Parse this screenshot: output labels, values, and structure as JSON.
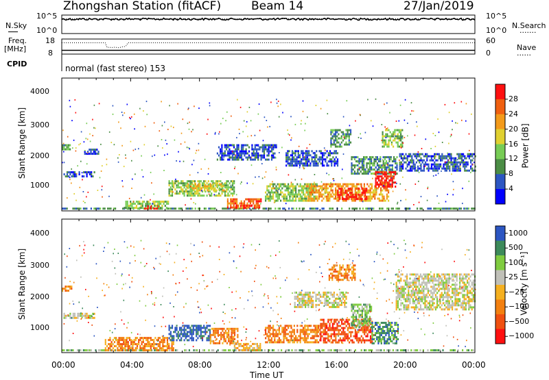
{
  "header": {
    "station": "Zhongshan Station (fitACF)",
    "beam": "Beam 14",
    "date": "27/Jan/2019"
  },
  "side_labels": {
    "nsky": "N.Sky",
    "freq_line1": "Freq.",
    "freq_line2": "[MHz]",
    "cpid": "CPID",
    "nsearch": "N.Search",
    "nave": "Nave",
    "dotted_sample": "......."
  },
  "cpid_text": "normal (fast stereo) 153",
  "chart_data": [
    {
      "type": "line",
      "panel": "noise",
      "left_ticks": [
        "10^5",
        "10^0"
      ],
      "right_ticks": [
        "10^5",
        "10^0"
      ],
      "series": [
        {
          "name": "N.Sky",
          "style": "solid",
          "level": 0.78
        },
        {
          "name": "N.Search",
          "style": "dotted",
          "level": 0.8
        }
      ]
    },
    {
      "type": "line",
      "panel": "frequency",
      "left_ticks": [
        "18",
        "8"
      ],
      "right_ticks": [
        "60",
        "0"
      ],
      "series": [
        {
          "name": "Freq.",
          "style": "solid",
          "value_mhz": 10.5
        },
        {
          "name": "Nave",
          "style": "dotted",
          "value": 45
        }
      ]
    },
    {
      "type": "heatmap",
      "panel": "power",
      "ylabel": "Slant Range [km]",
      "yticks": [
        "4000",
        "3000",
        "2000",
        "1000"
      ],
      "ylim": [
        180,
        4600
      ],
      "xlim": [
        0,
        24
      ],
      "colorbar_label": "Power [dB]",
      "colorbar_ticks": [
        "28",
        "24",
        "20",
        "16",
        "12",
        "8",
        "4"
      ],
      "colors": [
        "#0000ff",
        "#2c56c2",
        "#4b8d45",
        "#77cc55",
        "#e0d030",
        "#f39a1a",
        "#f06010",
        "#ff1010"
      ],
      "regions": [
        {
          "t": [
            0.1,
            1.9
          ],
          "r": [
            1350,
            1500
          ],
          "level": 1
        },
        {
          "t": [
            0.0,
            0.5
          ],
          "r": [
            2200,
            2400
          ],
          "level": 2
        },
        {
          "t": [
            1.3,
            2.1
          ],
          "r": [
            2050,
            2250
          ],
          "level": 1
        },
        {
          "t": [
            0.0,
            24.0
          ],
          "r": [
            230,
            290
          ],
          "level": 2
        },
        {
          "t": [
            3.6,
            6.2
          ],
          "r": [
            260,
            520
          ],
          "level": 3
        },
        {
          "t": [
            4.7,
            5.6
          ],
          "r": [
            260,
            360
          ],
          "level": 7
        },
        {
          "t": [
            6.2,
            10.0
          ],
          "r": [
            700,
            1200
          ],
          "level": 3
        },
        {
          "t": [
            7.2,
            9.4
          ],
          "r": [
            850,
            1100
          ],
          "level": 4
        },
        {
          "t": [
            9.6,
            11.6
          ],
          "r": [
            280,
            600
          ],
          "level": 6
        },
        {
          "t": [
            10.1,
            11.2
          ],
          "r": [
            250,
            380
          ],
          "level": 7
        },
        {
          "t": [
            11.8,
            14.8
          ],
          "r": [
            500,
            1100
          ],
          "level": 3
        },
        {
          "t": [
            13.0,
            16.0
          ],
          "r": [
            1700,
            2200
          ],
          "level": 1
        },
        {
          "t": [
            14.2,
            19.0
          ],
          "r": [
            500,
            1100
          ],
          "level": 5
        },
        {
          "t": [
            16.0,
            17.7
          ],
          "r": [
            600,
            950
          ],
          "level": 7
        },
        {
          "t": [
            15.6,
            16.8
          ],
          "r": [
            2300,
            2900
          ],
          "level": 2
        },
        {
          "t": [
            16.8,
            19.5
          ],
          "r": [
            1400,
            2000
          ],
          "level": 2
        },
        {
          "t": [
            18.2,
            19.4
          ],
          "r": [
            1000,
            1500
          ],
          "level": 7
        },
        {
          "t": [
            18.6,
            19.8
          ],
          "r": [
            2300,
            2900
          ],
          "level": 3
        },
        {
          "t": [
            19.6,
            24.0
          ],
          "r": [
            1500,
            2100
          ],
          "level": 1
        },
        {
          "t": [
            9.0,
            12.5
          ],
          "r": [
            1900,
            2400
          ],
          "level": 1
        }
      ]
    },
    {
      "type": "heatmap",
      "panel": "velocity",
      "ylabel": "Slant Range [km]",
      "yticks": [
        "4000",
        "3000",
        "2000",
        "1000"
      ],
      "ylim": [
        180,
        4600
      ],
      "xlim": [
        0,
        24
      ],
      "xticks": [
        "00:00",
        "04:00",
        "08:00",
        "12:00",
        "16:00",
        "20:00",
        "00:00"
      ],
      "xlabel": "Time UT",
      "colorbar_label": "Velocity [m s⁻¹]",
      "colorbar_ticks": [
        "1000",
        "500",
        "100",
        "25",
        "−25",
        "−100",
        "−500",
        "−1000"
      ],
      "colors": [
        "#ff1010",
        "#f05010",
        "#f38010",
        "#f5b020",
        "#c0c0b8",
        "#80cc40",
        "#3d8a5a",
        "#2c56c2"
      ],
      "regions": [
        {
          "t": [
            0.1,
            1.9
          ],
          "r": [
            1350,
            1500
          ],
          "level": 4
        },
        {
          "t": [
            0.0,
            0.6
          ],
          "r": [
            2200,
            2400
          ],
          "level": 2
        },
        {
          "t": [
            0.0,
            24.0
          ],
          "r": [
            230,
            290
          ],
          "level": 5
        },
        {
          "t": [
            2.5,
            6.5
          ],
          "r": [
            260,
            700
          ],
          "level": 2
        },
        {
          "t": [
            6.2,
            8.6
          ],
          "r": [
            600,
            1100
          ],
          "level": 7
        },
        {
          "t": [
            8.6,
            10.2
          ],
          "r": [
            500,
            1000
          ],
          "level": 2
        },
        {
          "t": [
            10.0,
            11.5
          ],
          "r": [
            260,
            500
          ],
          "level": 3
        },
        {
          "t": [
            11.8,
            15.0
          ],
          "r": [
            500,
            1100
          ],
          "level": 2
        },
        {
          "t": [
            13.5,
            16.5
          ],
          "r": [
            1700,
            2200
          ],
          "level": 4
        },
        {
          "t": [
            15.0,
            18.0
          ],
          "r": [
            550,
            1300
          ],
          "level": 1
        },
        {
          "t": [
            16.8,
            18.0
          ],
          "r": [
            1000,
            1800
          ],
          "level": 5
        },
        {
          "t": [
            18.0,
            19.5
          ],
          "r": [
            500,
            1200
          ],
          "level": 6
        },
        {
          "t": [
            19.4,
            24.0
          ],
          "r": [
            1600,
            2800
          ],
          "level": 4
        },
        {
          "t": [
            15.5,
            17.0
          ],
          "r": [
            2600,
            3100
          ],
          "level": 2
        }
      ]
    }
  ]
}
